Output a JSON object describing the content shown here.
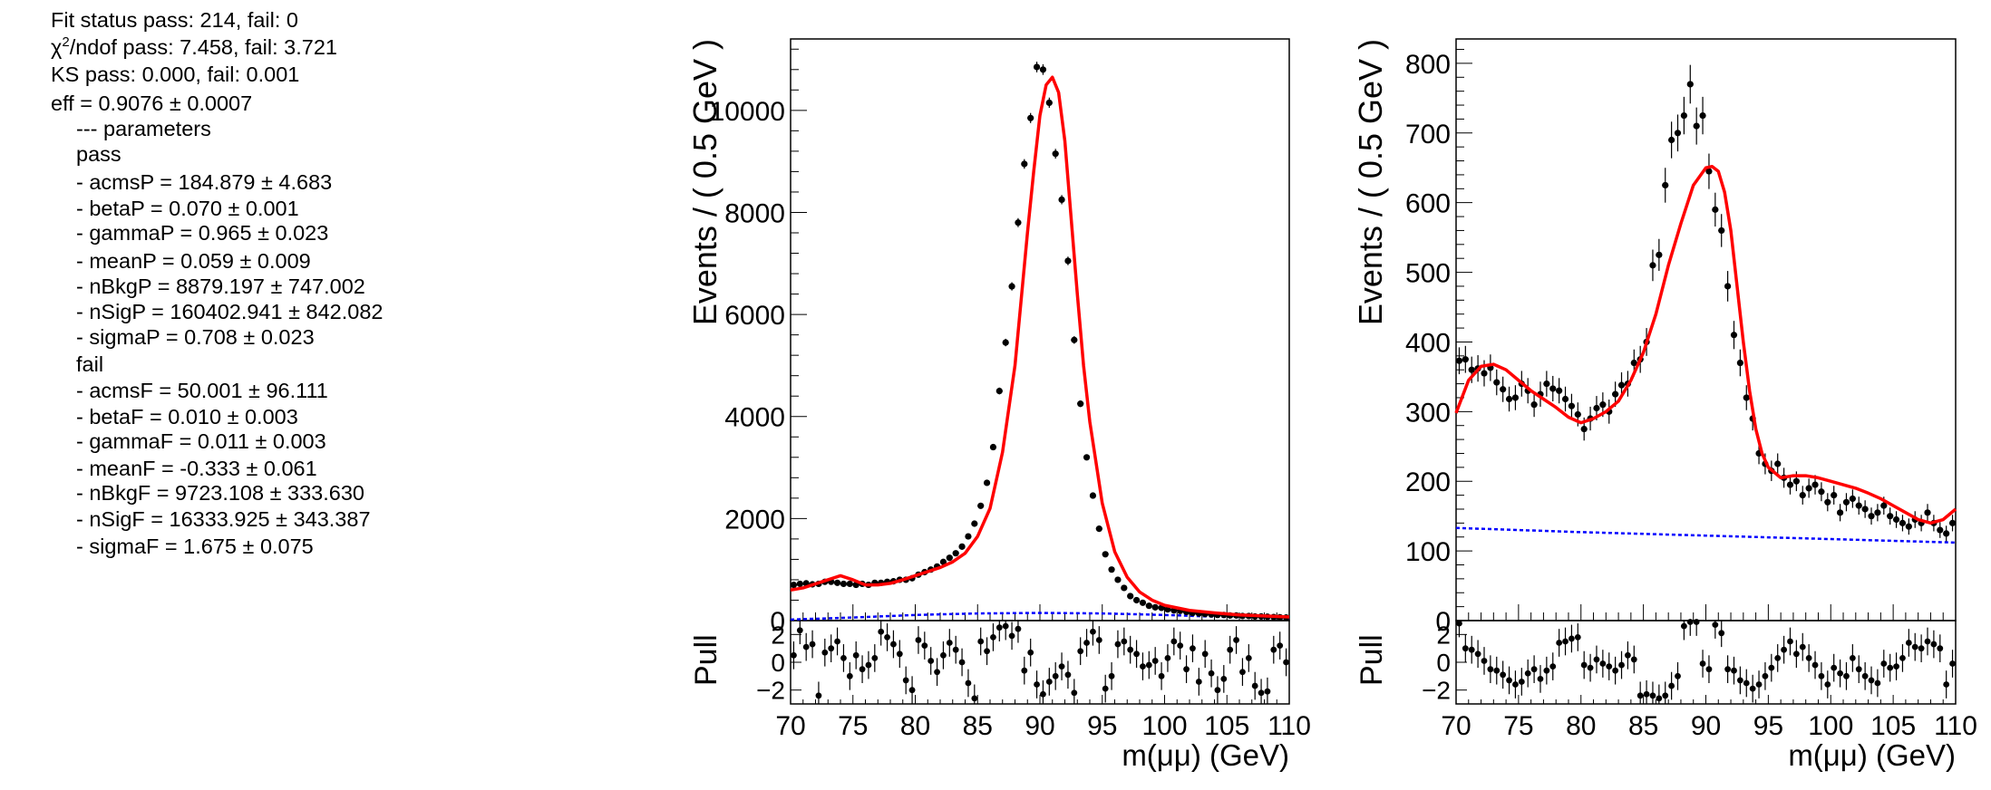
{
  "info": {
    "fit_status": "Fit status pass: 214, fail: 0",
    "chi2_symbol": "χ",
    "chi2_sup": "2",
    "chi2_rest": "/ndof pass: 7.458, fail: 3.721",
    "ks": "KS pass: 0.000, fail: 0.001",
    "eff": "eff = 0.9076 ± 0.0007",
    "parameters_header": "--- parameters",
    "pass_header": "pass",
    "pass_params": [
      "- acmsP = 184.879  ± 4.683",
      "- betaP = 0.070  ± 0.001",
      "- gammaP = 0.965  ± 0.023",
      "- meanP = 0.059  ± 0.009",
      "- nBkgP = 8879.197  ± 747.002",
      "- nSigP = 160402.941  ± 842.082",
      "- sigmaP = 0.708  ± 0.023"
    ],
    "fail_header": "fail",
    "fail_params": [
      "- acmsF = 50.001  ± 96.111",
      "- betaF = 0.010  ± 0.003",
      "- gammaF = 0.011  ± 0.003",
      "- meanF = -0.333  ± 0.061",
      "- nBkgF = 9723.108  ± 333.630",
      "- nSigF = 16333.925  ± 343.387",
      "- sigmaF = 1.675  ± 0.075"
    ]
  },
  "colors": {
    "fit": "#ff0000",
    "background": "#0000ff",
    "data": "#000000"
  },
  "chart_data": [
    {
      "type": "scatter",
      "name": "pass",
      "ylabel": "Events / ( 0.5 GeV )",
      "xlabel": "m(μμ) (GeV)",
      "xlim": [
        70,
        110
      ],
      "ylim": [
        0,
        11400
      ],
      "yticks": [
        0,
        2000,
        4000,
        6000,
        8000,
        10000
      ],
      "ytick_labels": [
        "0",
        "2000",
        "4000",
        "6000",
        "8000",
        "10000"
      ],
      "xticks": [
        70,
        75,
        80,
        85,
        90,
        95,
        100,
        105,
        110
      ],
      "xtick_labels": [
        "70",
        "75",
        "80",
        "85",
        "90",
        "95",
        "100",
        "105",
        "110"
      ],
      "data_points": {
        "x": [
          70.25,
          70.75,
          71.25,
          71.75,
          72.25,
          72.75,
          73.25,
          73.75,
          74.25,
          74.75,
          75.25,
          75.75,
          76.25,
          76.75,
          77.25,
          77.75,
          78.25,
          78.75,
          79.25,
          79.75,
          80.25,
          80.75,
          81.25,
          81.75,
          82.25,
          82.75,
          83.25,
          83.75,
          84.25,
          84.75,
          85.25,
          85.75,
          86.25,
          86.75,
          87.25,
          87.75,
          88.25,
          88.75,
          89.25,
          89.75,
          90.25,
          90.75,
          91.25,
          91.75,
          92.25,
          92.75,
          93.25,
          93.75,
          94.25,
          94.75,
          95.25,
          95.75,
          96.25,
          96.75,
          97.25,
          97.75,
          98.25,
          98.75,
          99.25,
          99.75,
          100.25,
          100.75,
          101.25,
          101.75,
          102.25,
          102.75,
          103.25,
          103.75,
          104.25,
          104.75,
          105.25,
          105.75,
          106.25,
          106.75,
          107.25,
          107.75,
          108.25,
          108.75,
          109.25,
          109.75
        ],
        "y": [
          700,
          720,
          730,
          710,
          720,
          760,
          760,
          740,
          720,
          720,
          700,
          720,
          700,
          740,
          740,
          760,
          770,
          800,
          800,
          830,
          900,
          950,
          1000,
          1060,
          1150,
          1230,
          1320,
          1450,
          1650,
          1900,
          2250,
          2700,
          3400,
          4500,
          5450,
          6550,
          7800,
          8950,
          9850,
          10850,
          10800,
          10150,
          9150,
          8250,
          7050,
          5500,
          4250,
          3200,
          2450,
          1800,
          1300,
          1000,
          800,
          640,
          480,
          400,
          350,
          290,
          260,
          250,
          220,
          200,
          190,
          170,
          150,
          140,
          130,
          120,
          110,
          110,
          100,
          100,
          90,
          90,
          80,
          80,
          75,
          70,
          65,
          60
        ]
      },
      "fit_curve": {
        "x": [
          70,
          71,
          72,
          73,
          74,
          75,
          76,
          77,
          78,
          79,
          80,
          81,
          82,
          83,
          84,
          85,
          86,
          87,
          88,
          89,
          89.5,
          90,
          90.5,
          91,
          91.5,
          92,
          92.5,
          93,
          93.5,
          94,
          95,
          96,
          97,
          98,
          99,
          100,
          102,
          104,
          106,
          108,
          110
        ],
        "y": [
          600,
          640,
          720,
          800,
          880,
          800,
          700,
          700,
          730,
          800,
          880,
          960,
          1040,
          1150,
          1320,
          1650,
          2200,
          3300,
          5000,
          7600,
          8800,
          9900,
          10500,
          10650,
          10350,
          9400,
          7900,
          6400,
          5000,
          3900,
          2300,
          1350,
          850,
          560,
          400,
          300,
          200,
          150,
          110,
          90,
          70
        ]
      },
      "background_curve": {
        "x": [
          70,
          75,
          80,
          85,
          90,
          95,
          100,
          105,
          110
        ],
        "y": [
          20,
          60,
          110,
          140,
          150,
          140,
          110,
          70,
          40
        ]
      },
      "pull": {
        "ylim": [
          -3,
          3
        ],
        "yticks": [
          -2,
          0,
          2
        ],
        "ytick_labels": [
          "−2",
          "0",
          "2"
        ],
        "ylabel": "Pull",
        "x": [
          70.25,
          70.75,
          71.25,
          71.75,
          72.25,
          72.75,
          73.25,
          73.75,
          74.25,
          74.75,
          75.25,
          75.75,
          76.25,
          76.75,
          77.25,
          77.75,
          78.25,
          78.75,
          79.25,
          79.75,
          80.25,
          80.75,
          81.25,
          81.75,
          82.25,
          82.75,
          83.25,
          83.75,
          84.25,
          84.75,
          85.25,
          85.75,
          86.25,
          86.75,
          87.25,
          87.75,
          88.25,
          88.75,
          89.25,
          89.75,
          90.25,
          90.75,
          91.25,
          91.75,
          92.25,
          92.75,
          93.25,
          93.75,
          94.25,
          94.75,
          95.25,
          95.75,
          96.25,
          96.75,
          97.25,
          97.75,
          98.25,
          98.75,
          99.25,
          99.75,
          100.25,
          100.75,
          101.25,
          101.75,
          102.25,
          102.75,
          103.25,
          103.75,
          104.25,
          104.75,
          105.25,
          105.75,
          106.25,
          106.75,
          107.25,
          107.75,
          108.25,
          108.75,
          109.25,
          109.75
        ],
        "y": [
          0.5,
          2.3,
          1.1,
          1.3,
          -2.4,
          0.7,
          1.0,
          1.5,
          0.3,
          -1.0,
          0.5,
          -0.5,
          -0.2,
          0.3,
          2.2,
          1.8,
          1.3,
          0.6,
          -1.3,
          -2.0,
          1.6,
          1.2,
          0.1,
          -0.7,
          0.5,
          1.4,
          0.9,
          0.0,
          -1.5,
          -2.6,
          1.5,
          0.8,
          1.8,
          2.5,
          2.6,
          1.9,
          2.4,
          -0.6,
          0.7,
          -1.6,
          -2.3,
          -1.4,
          -1.0,
          -0.3,
          -0.9,
          -2.2,
          0.8,
          1.4,
          2.2,
          1.6,
          -1.9,
          -1.0,
          1.3,
          1.5,
          0.9,
          0.6,
          -0.3,
          -0.2,
          0.1,
          -1.0,
          0.3,
          1.5,
          1.2,
          -0.5,
          1.0,
          -1.4,
          0.6,
          -0.8,
          -2.0,
          -1.2,
          0.9,
          1.6,
          -0.7,
          0.3,
          -1.7,
          -2.2,
          -2.1,
          0.9,
          1.2,
          0.0
        ]
      }
    },
    {
      "type": "scatter",
      "name": "fail",
      "ylabel": "Events / ( 0.5 GeV )",
      "xlabel": "m(μμ) (GeV)",
      "xlim": [
        70,
        110
      ],
      "ylim": [
        0,
        835
      ],
      "yticks": [
        0,
        100,
        200,
        300,
        400,
        500,
        600,
        700,
        800
      ],
      "ytick_labels": [
        "0",
        "100",
        "200",
        "300",
        "400",
        "500",
        "600",
        "700",
        "800"
      ],
      "xticks": [
        70,
        75,
        80,
        85,
        90,
        95,
        100,
        105,
        110
      ],
      "xtick_labels": [
        "70",
        "75",
        "80",
        "85",
        "90",
        "95",
        "100",
        "105",
        "110"
      ],
      "data_points": {
        "x": [
          70.25,
          70.75,
          71.25,
          71.75,
          72.25,
          72.75,
          73.25,
          73.75,
          74.25,
          74.75,
          75.25,
          75.75,
          76.25,
          76.75,
          77.25,
          77.75,
          78.25,
          78.75,
          79.25,
          79.75,
          80.25,
          80.75,
          81.25,
          81.75,
          82.25,
          82.75,
          83.25,
          83.75,
          84.25,
          84.75,
          85.25,
          85.75,
          86.25,
          86.75,
          87.25,
          87.75,
          88.25,
          88.75,
          89.25,
          89.75,
          90.25,
          90.75,
          91.25,
          91.75,
          92.25,
          92.75,
          93.25,
          93.75,
          94.25,
          94.75,
          95.25,
          95.75,
          96.25,
          96.75,
          97.25,
          97.75,
          98.25,
          98.75,
          99.25,
          99.75,
          100.25,
          100.75,
          101.25,
          101.75,
          102.25,
          102.75,
          103.25,
          103.75,
          104.25,
          104.75,
          105.25,
          105.75,
          106.25,
          106.75,
          107.25,
          107.75,
          108.25,
          108.75,
          109.25,
          109.75
        ],
        "y": [
          373,
          375,
          360,
          362,
          355,
          363,
          342,
          332,
          318,
          320,
          340,
          330,
          310,
          325,
          340,
          333,
          330,
          318,
          308,
          296,
          275,
          290,
          305,
          310,
          300,
          325,
          338,
          340,
          370,
          375,
          400,
          510,
          525,
          625,
          690,
          700,
          725,
          770,
          710,
          725,
          645,
          590,
          560,
          480,
          410,
          370,
          320,
          290,
          240,
          225,
          215,
          225,
          205,
          195,
          200,
          180,
          190,
          195,
          185,
          170,
          180,
          155,
          170,
          175,
          165,
          160,
          150,
          155,
          165,
          150,
          145,
          140,
          135,
          145,
          140,
          155,
          140,
          130,
          125,
          140
        ]
      },
      "fit_curve": {
        "x": [
          70,
          71,
          72,
          73,
          74,
          75,
          76,
          77,
          78,
          79,
          80,
          81,
          82,
          83,
          84,
          85,
          86,
          87,
          88,
          89,
          90,
          90.5,
          91,
          91.5,
          92,
          92.5,
          93,
          93.5,
          94,
          94.5,
          95,
          96,
          97,
          98,
          99,
          100,
          101,
          102,
          103,
          104,
          105,
          106,
          107,
          108,
          109,
          110
        ],
        "y": [
          298,
          345,
          365,
          368,
          360,
          345,
          330,
          318,
          306,
          292,
          284,
          290,
          300,
          315,
          345,
          385,
          440,
          510,
          570,
          625,
          650,
          652,
          645,
          615,
          560,
          480,
          400,
          330,
          275,
          240,
          220,
          205,
          208,
          208,
          205,
          200,
          195,
          190,
          183,
          175,
          165,
          155,
          145,
          140,
          145,
          160
        ]
      },
      "background_curve": {
        "x": [
          70,
          80,
          90,
          100,
          110
        ],
        "y": [
          133,
          127,
          122,
          117,
          112
        ]
      },
      "pull": {
        "ylim": [
          -3,
          3
        ],
        "yticks": [
          -2,
          0,
          2
        ],
        "ytick_labels": [
          "−2",
          "0",
          "2"
        ],
        "ylabel": "Pull",
        "x": [
          70.25,
          70.75,
          71.25,
          71.75,
          72.25,
          72.75,
          73.25,
          73.75,
          74.25,
          74.75,
          75.25,
          75.75,
          76.25,
          76.75,
          77.25,
          77.75,
          78.25,
          78.75,
          79.25,
          79.75,
          80.25,
          80.75,
          81.25,
          81.75,
          82.25,
          82.75,
          83.25,
          83.75,
          84.25,
          84.75,
          85.25,
          85.75,
          86.25,
          86.75,
          87.25,
          87.75,
          88.25,
          88.75,
          89.25,
          89.75,
          90.25,
          90.75,
          91.25,
          91.75,
          92.25,
          92.75,
          93.25,
          93.75,
          94.25,
          94.75,
          95.25,
          95.75,
          96.25,
          96.75,
          97.25,
          97.75,
          98.25,
          98.75,
          99.25,
          99.75,
          100.25,
          100.75,
          101.25,
          101.75,
          102.25,
          102.75,
          103.25,
          103.75,
          104.25,
          104.75,
          105.25,
          105.75,
          106.25,
          106.75,
          107.25,
          107.75,
          108.25,
          108.75,
          109.25,
          109.75
        ],
        "y": [
          2.8,
          1.0,
          0.9,
          0.6,
          0.1,
          -0.5,
          -0.6,
          -0.9,
          -1.3,
          -1.6,
          -1.4,
          -0.8,
          -0.5,
          -1.2,
          -0.6,
          -0.3,
          1.4,
          1.5,
          1.7,
          1.8,
          -0.2,
          -0.4,
          0.2,
          -0.1,
          -0.3,
          -0.6,
          -0.2,
          0.5,
          0.2,
          -2.4,
          -2.3,
          -2.4,
          -2.6,
          -2.4,
          -1.7,
          -1.0,
          2.6,
          2.9,
          2.9,
          -0.1,
          -0.5,
          2.7,
          2.1,
          -0.5,
          -0.6,
          -1.3,
          -1.5,
          -1.9,
          -1.6,
          -1.0,
          -0.4,
          0.3,
          0.9,
          1.5,
          0.6,
          1.1,
          0.3,
          -0.2,
          -1.0,
          -1.6,
          -0.4,
          -0.8,
          -1.0,
          0.3,
          -0.5,
          -1.0,
          -1.3,
          -1.5,
          -0.1,
          -0.4,
          -0.3,
          0.3,
          1.4,
          1.1,
          1.0,
          1.5,
          1.3,
          1.0,
          -1.6,
          -0.1
        ]
      }
    }
  ]
}
